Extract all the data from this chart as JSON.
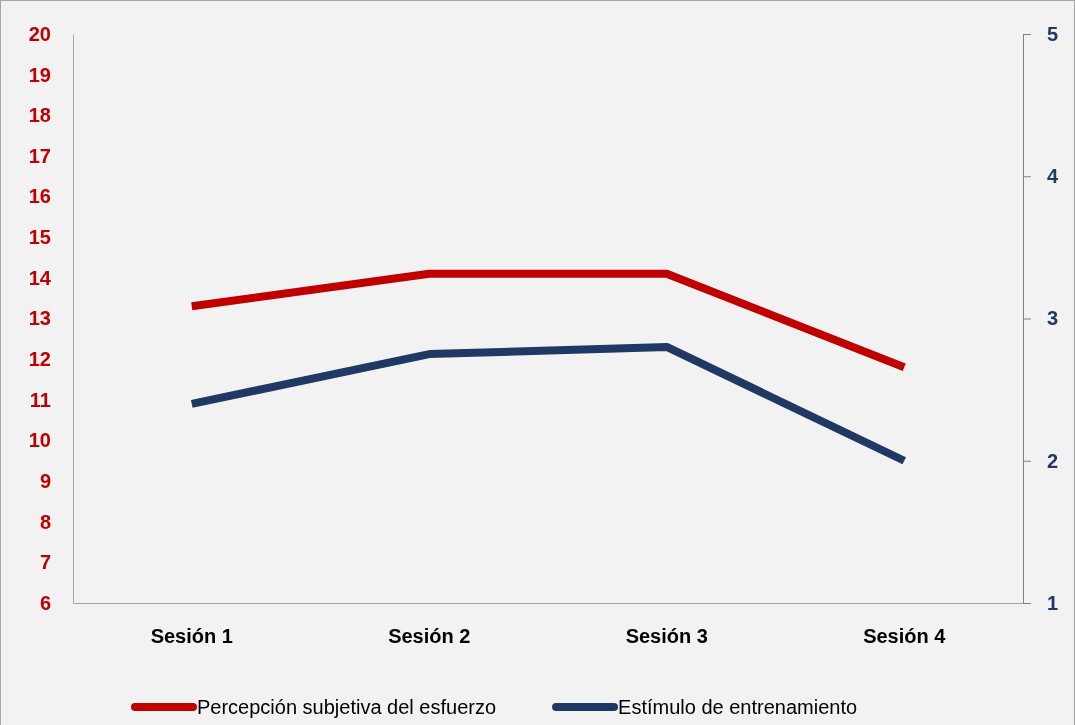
{
  "chart_data": {
    "type": "line",
    "categories": [
      "Sesión 1",
      "Sesión 2",
      "Sesión 3",
      "Sesión 4"
    ],
    "series": [
      {
        "name": "Percepción subjetiva del esfuerzo",
        "color": "#c00000",
        "values": [
          13.3,
          14.1,
          14.1,
          11.8
        ]
      },
      {
        "name": "Estímulo de entrenamiento",
        "color": "#1f3864",
        "values": [
          2.4,
          2.75,
          2.8,
          2.0
        ],
        "axis": "y2"
      }
    ],
    "ylim": [
      6,
      20
    ],
    "yticks": [
      6,
      7,
      8,
      9,
      10,
      11,
      12,
      13,
      14,
      15,
      16,
      17,
      18,
      19,
      20
    ],
    "y2lim": [
      1,
      5
    ],
    "y2ticks": [
      1,
      2,
      3,
      4,
      5
    ],
    "legend": "bottom",
    "grid": false,
    "marker": "none",
    "line_style": "solid"
  }
}
